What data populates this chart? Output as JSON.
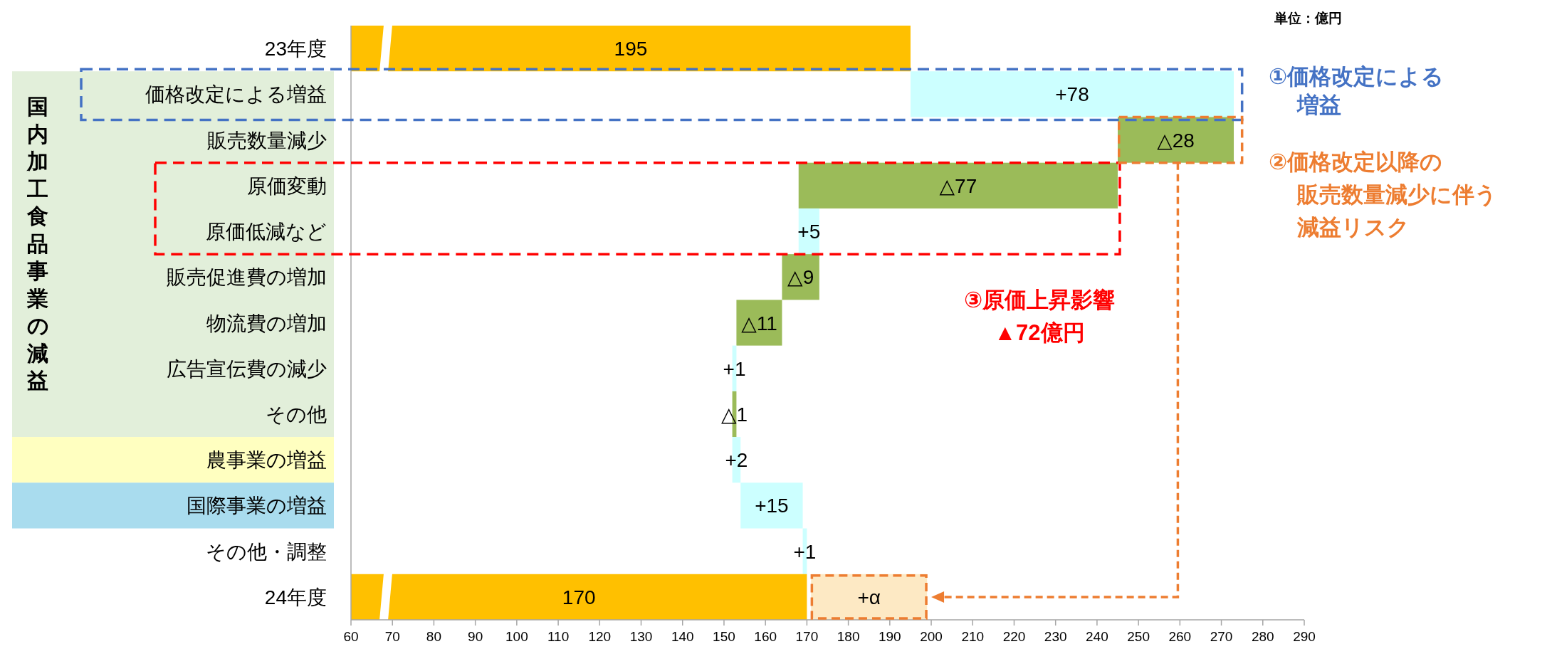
{
  "chart_data": {
    "type": "bar",
    "orientation": "horizontal",
    "categories": [
      "23年度",
      "価格改定による増益",
      "販売数量減少",
      "原価変動",
      "原価低減など",
      "販売促進費の増加",
      "物流費の増加",
      "広告宣伝費の減少",
      "その他",
      "農事業の増益",
      "国際事業の増益",
      "その他・調整",
      "24年度"
    ],
    "xlim": [
      60,
      290
    ],
    "xticks": [
      60,
      70,
      80,
      90,
      100,
      110,
      120,
      130,
      140,
      150,
      160,
      170,
      180,
      190,
      200,
      210,
      220,
      230,
      240,
      250,
      260,
      270,
      280,
      290
    ],
    "series": [
      {
        "values": [
          195,
          78,
          -28,
          -77,
          5,
          -9,
          -11,
          1,
          -1,
          2,
          15,
          1,
          170
        ],
        "base": [
          0,
          195,
          273,
          245,
          168,
          173,
          164,
          152,
          153,
          152,
          154,
          169,
          0
        ],
        "colors": [
          "#ffc000",
          "#ccffff",
          "#9bbb59",
          "#9bbb59",
          "#ccffff",
          "#9bbb59",
          "#9bbb59",
          "#ccffff",
          "#9bbb59",
          "#ccffff",
          "#ccffff",
          "#ccffff",
          "#ffc000"
        ],
        "value_labels": [
          "195",
          "+78",
          "△28",
          "△77",
          "+5",
          "△9",
          "△11",
          "+1",
          "△1",
          "+2",
          "+15",
          "+1",
          "170"
        ]
      },
      {
        "values": [
          null,
          null,
          null,
          null,
          null,
          null,
          null,
          null,
          null,
          null,
          null,
          null,
          28
        ],
        "base": [
          null,
          null,
          null,
          null,
          null,
          null,
          null,
          null,
          null,
          null,
          null,
          null,
          171
        ],
        "color": "#fde9c4",
        "value_labels": [
          null,
          null,
          null,
          null,
          null,
          null,
          null,
          null,
          null,
          null,
          null,
          null,
          "+α"
        ]
      }
    ],
    "annotations": [
      "単位：億円",
      "国内加工食品事業の減益",
      "①価格改定による増益",
      "②価格改定以降の販売数量減少に伴う減益リスク",
      "③原価上昇影響▲72億円"
    ]
  }
}
